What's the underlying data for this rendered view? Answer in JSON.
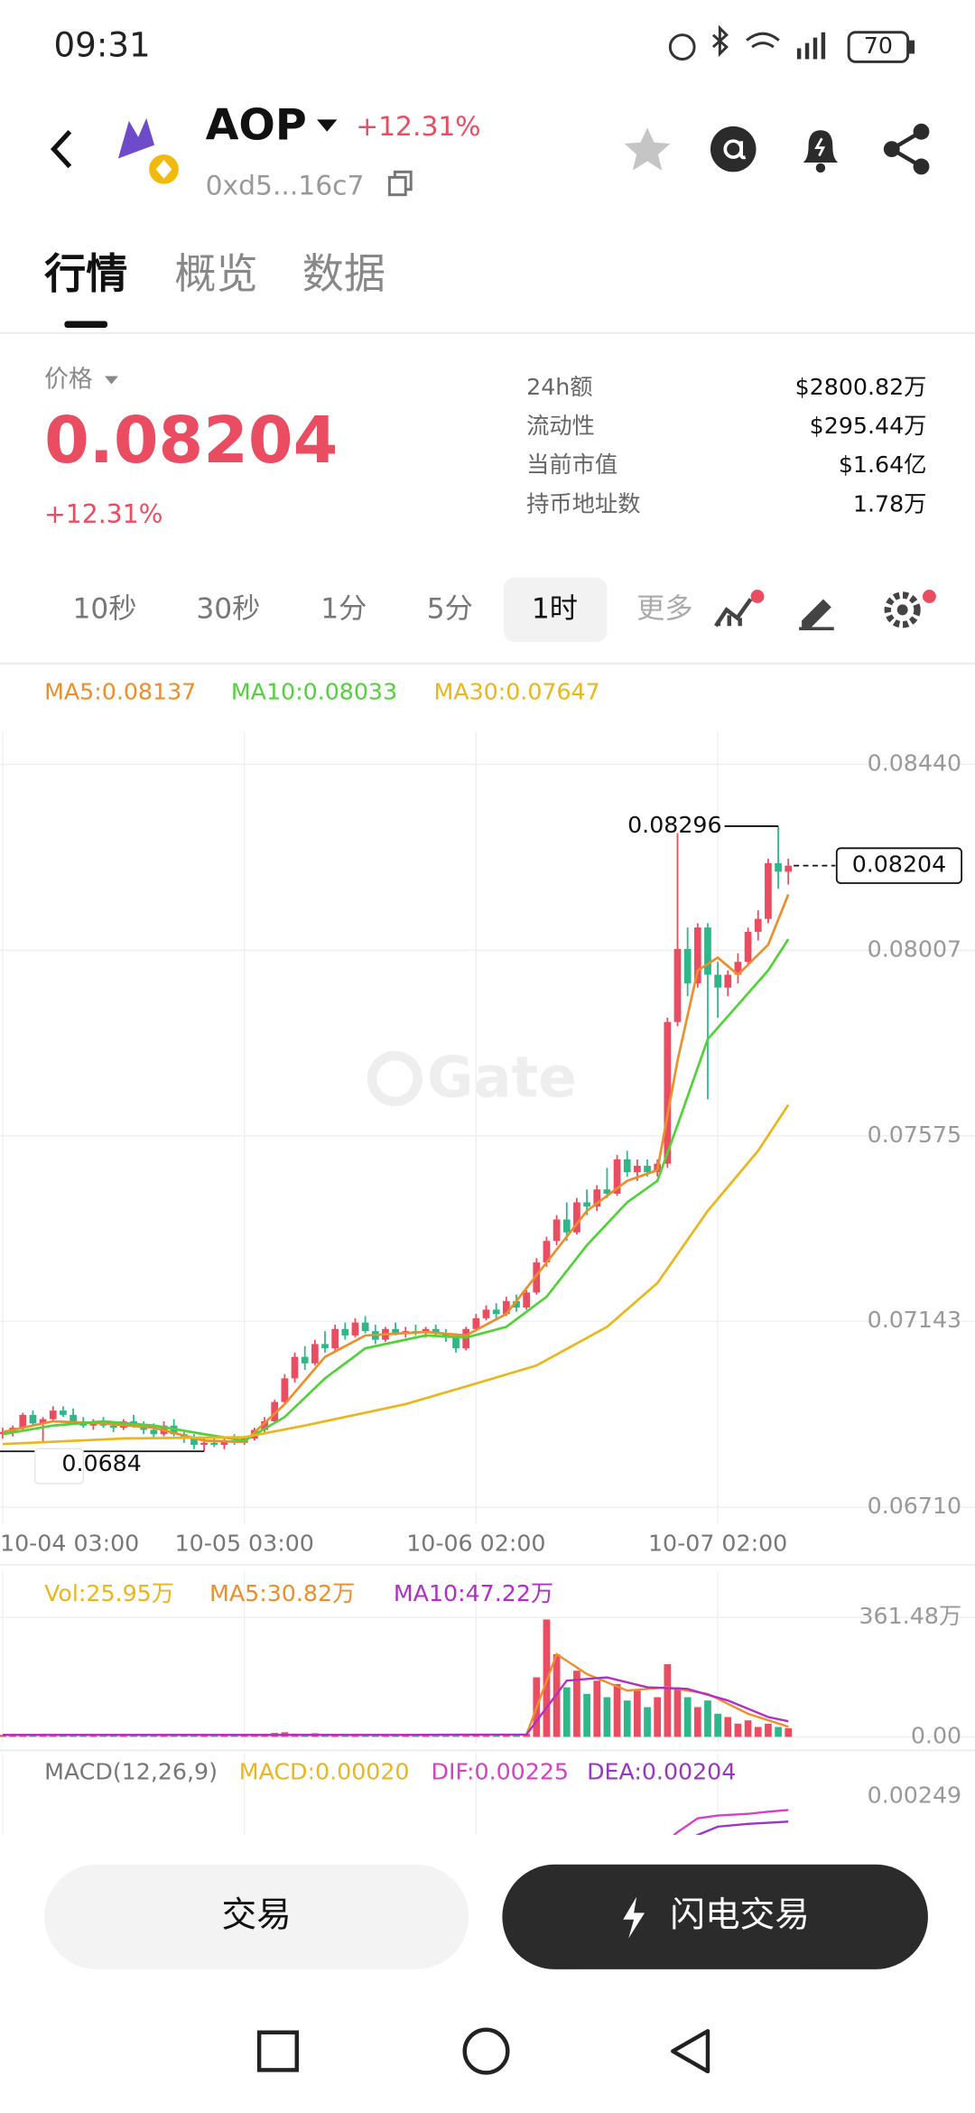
{
  "status": {
    "time": "09:31",
    "battery": "70"
  },
  "header": {
    "symbol": "AOP",
    "change": "+12.31%",
    "address": "0xd5...16c7"
  },
  "tabs": [
    "行情",
    "概览",
    "数据"
  ],
  "quote": {
    "price_label": "价格",
    "price": "0.08204",
    "change": "+12.31%"
  },
  "stats": [
    [
      "24h额",
      "$2800.82万"
    ],
    [
      "流动性",
      "$295.44万"
    ],
    [
      "当前市值",
      "$1.64亿"
    ],
    [
      "持币地址数",
      "1.78万"
    ]
  ],
  "intervals": [
    "10秒",
    "30秒",
    "1分",
    "5分",
    "1时",
    "更多"
  ],
  "chart": {
    "type": "candlestick",
    "watermark": "Gate",
    "up_color": "#ea4d62",
    "down_color": "#2eb88a",
    "ylim": [
      0.0671,
      0.0844
    ],
    "yticks": [
      {
        "value": 0.0844,
        "label": "0.08440"
      },
      0.08007,
      0.07575,
      0.07143,
      {
        "value": 0.0671,
        "label": "0.06710"
      }
    ],
    "categories": [
      "10-04 03:00",
      null,
      null,
      null,
      null,
      null,
      null,
      null,
      null,
      null,
      null,
      null,
      null,
      null,
      null,
      null,
      null,
      null,
      null,
      null,
      null,
      null,
      null,
      null,
      "10-05 03:00",
      null,
      null,
      null,
      null,
      null,
      null,
      null,
      null,
      null,
      null,
      null,
      null,
      null,
      null,
      null,
      null,
      null,
      null,
      null,
      null,
      null,
      null,
      "10-06 02:00",
      null,
      null,
      null,
      null,
      null,
      null,
      null,
      null,
      null,
      null,
      null,
      null,
      null,
      null,
      null,
      null,
      null,
      null,
      null,
      null,
      null,
      null,
      null,
      "10-07 02:00",
      null,
      null,
      null,
      null,
      null,
      null,
      null
    ],
    "candles": [
      [
        0.0688,
        0.06895,
        0.0687,
        0.06885
      ],
      [
        0.06885,
        0.069,
        0.06875,
        0.06895
      ],
      [
        0.06895,
        0.0693,
        0.0689,
        0.06925
      ],
      [
        0.06925,
        0.06935,
        0.069,
        0.06905
      ],
      [
        0.06905,
        0.0692,
        0.06862,
        0.06915
      ],
      [
        0.06915,
        0.06945,
        0.0691,
        0.06935
      ],
      [
        0.06935,
        0.06945,
        0.0692,
        0.06925
      ],
      [
        0.06925,
        0.0694,
        0.06905,
        0.0691
      ],
      [
        0.0691,
        0.0692,
        0.06895,
        0.069
      ],
      [
        0.069,
        0.06915,
        0.0689,
        0.06905
      ],
      [
        0.06905,
        0.0692,
        0.06895,
        0.069
      ],
      [
        0.069,
        0.0691,
        0.06885,
        0.06895
      ],
      [
        0.06895,
        0.06915,
        0.0689,
        0.0691
      ],
      [
        0.0691,
        0.06925,
        0.06895,
        0.069
      ],
      [
        0.069,
        0.0691,
        0.0688,
        0.0689
      ],
      [
        0.0689,
        0.06905,
        0.0687,
        0.0688
      ],
      [
        0.0688,
        0.0691,
        0.06875,
        0.069
      ],
      [
        0.069,
        0.06915,
        0.06875,
        0.0688
      ],
      [
        0.0688,
        0.0689,
        0.0686,
        0.0687
      ],
      [
        0.0687,
        0.0688,
        0.06845,
        0.06855
      ],
      [
        0.06855,
        0.0687,
        0.0684,
        0.0686
      ],
      [
        0.0686,
        0.06875,
        0.0685,
        0.06855
      ],
      [
        0.06855,
        0.0687,
        0.06845,
        0.06865
      ],
      [
        0.06865,
        0.0688,
        0.06855,
        0.0686
      ],
      [
        0.0686,
        0.06875,
        0.06855,
        0.0687
      ],
      [
        0.0687,
        0.06895,
        0.06865,
        0.0689
      ],
      [
        0.0689,
        0.0692,
        0.06885,
        0.0691
      ],
      [
        0.0691,
        0.0696,
        0.06905,
        0.06955
      ],
      [
        0.06955,
        0.0702,
        0.0695,
        0.0701
      ],
      [
        0.0701,
        0.0707,
        0.07,
        0.0706
      ],
      [
        0.0706,
        0.07085,
        0.0703,
        0.07045
      ],
      [
        0.07045,
        0.071,
        0.0704,
        0.0709
      ],
      [
        0.0709,
        0.0712,
        0.0707,
        0.0708
      ],
      [
        0.0708,
        0.07135,
        0.07075,
        0.07125
      ],
      [
        0.07125,
        0.0714,
        0.071,
        0.0711
      ],
      [
        0.0711,
        0.0715,
        0.07105,
        0.0714
      ],
      [
        0.0714,
        0.07155,
        0.07115,
        0.0712
      ],
      [
        0.0712,
        0.07135,
        0.0709,
        0.071
      ],
      [
        0.071,
        0.0713,
        0.07095,
        0.07125
      ],
      [
        0.07125,
        0.0714,
        0.0711,
        0.07115
      ],
      [
        0.07115,
        0.0713,
        0.07105,
        0.0712
      ],
      [
        0.0712,
        0.07135,
        0.0711,
        0.07115
      ],
      [
        0.07115,
        0.0713,
        0.07105,
        0.07125
      ],
      [
        0.07125,
        0.07135,
        0.0711,
        0.07115
      ],
      [
        0.07115,
        0.07125,
        0.07095,
        0.07105
      ],
      [
        0.07105,
        0.07115,
        0.0707,
        0.0708
      ],
      [
        0.0708,
        0.0713,
        0.07075,
        0.07125
      ],
      [
        0.07125,
        0.0716,
        0.0712,
        0.0715
      ],
      [
        0.0715,
        0.0718,
        0.07145,
        0.0717
      ],
      [
        0.0717,
        0.07185,
        0.0715,
        0.0716
      ],
      [
        0.0716,
        0.072,
        0.07155,
        0.0719
      ],
      [
        0.0719,
        0.07205,
        0.07165,
        0.07175
      ],
      [
        0.07175,
        0.07215,
        0.0717,
        0.0721
      ],
      [
        0.0721,
        0.0729,
        0.07205,
        0.0728
      ],
      [
        0.0728,
        0.0734,
        0.0727,
        0.0733
      ],
      [
        0.0733,
        0.0739,
        0.0732,
        0.0738
      ],
      [
        0.0738,
        0.0742,
        0.0733,
        0.0735
      ],
      [
        0.0735,
        0.0743,
        0.07345,
        0.0742
      ],
      [
        0.0742,
        0.0745,
        0.0739,
        0.0741
      ],
      [
        0.0741,
        0.0746,
        0.074,
        0.0745
      ],
      [
        0.0745,
        0.075,
        0.0743,
        0.0744
      ],
      [
        0.0744,
        0.0753,
        0.07435,
        0.0752
      ],
      [
        0.0752,
        0.0754,
        0.0748,
        0.0749
      ],
      [
        0.0749,
        0.0752,
        0.0747,
        0.07505
      ],
      [
        0.07505,
        0.0752,
        0.0748,
        0.0749
      ],
      [
        0.0749,
        0.0752,
        0.0748,
        0.0751
      ],
      [
        0.0751,
        0.0785,
        0.075,
        0.0784
      ],
      [
        0.0784,
        0.0828,
        0.0783,
        0.0801
      ],
      [
        0.0801,
        0.0806,
        0.079,
        0.0793
      ],
      [
        0.0793,
        0.0807,
        0.0792,
        0.0806
      ],
      [
        0.0806,
        0.0807,
        0.0766,
        0.0795
      ],
      [
        0.0795,
        0.0798,
        0.0785,
        0.0792
      ],
      [
        0.0792,
        0.0796,
        0.079,
        0.0795
      ],
      [
        0.0795,
        0.08,
        0.0793,
        0.0798
      ],
      [
        0.0798,
        0.0806,
        0.0797,
        0.0805
      ],
      [
        0.0805,
        0.081,
        0.0803,
        0.0808
      ],
      [
        0.0808,
        0.0822,
        0.0807,
        0.0821
      ],
      [
        0.0821,
        0.08296,
        0.0815,
        0.0819
      ],
      [
        0.0819,
        0.0822,
        0.0816,
        0.08204
      ]
    ],
    "ma": [
      {
        "label": "MA5:0.08137",
        "color": "#ec8f2b",
        "x": [
          0,
          5,
          10,
          15,
          20,
          24,
          28,
          32,
          36,
          42,
          46,
          50,
          54,
          58,
          62,
          65,
          67,
          69,
          71,
          73,
          76,
          78
        ],
        "values": [
          0.06885,
          0.0691,
          0.06905,
          0.06895,
          0.06865,
          0.06862,
          0.0695,
          0.0706,
          0.0711,
          0.07118,
          0.0711,
          0.0716,
          0.0728,
          0.074,
          0.0747,
          0.07495,
          0.0775,
          0.0796,
          0.0799,
          0.0795,
          0.0802,
          0.08137
        ]
      },
      {
        "label": "MA10:0.08033",
        "color": "#52d13b",
        "x": [
          0,
          5,
          10,
          15,
          20,
          24,
          28,
          32,
          36,
          42,
          46,
          50,
          54,
          58,
          62,
          65,
          67,
          70,
          73,
          76,
          78
        ],
        "values": [
          0.0688,
          0.069,
          0.0691,
          0.069,
          0.0688,
          0.06865,
          0.0692,
          0.0701,
          0.0708,
          0.0711,
          0.07105,
          0.0713,
          0.072,
          0.0732,
          0.0742,
          0.0747,
          0.076,
          0.078,
          0.0788,
          0.0796,
          0.08033
        ]
      },
      {
        "label": "MA30:0.07647",
        "color": "#eab61c",
        "x": [
          0,
          12,
          24,
          30,
          40,
          47,
          53,
          60,
          65,
          70,
          75,
          78
        ],
        "values": [
          0.06857,
          0.0687,
          0.06873,
          0.069,
          0.0695,
          0.06998,
          0.0704,
          0.0713,
          0.07232,
          0.074,
          0.0754,
          0.07647
        ]
      }
    ],
    "volume": {
      "legend": "Vol:25.95万",
      "ylim": [
        0,
        361.48
      ],
      "yticks": [
        {
          "value": 361.48,
          "label": "361.48万"
        },
        {
          "value": 0,
          "label": "0.00"
        }
      ],
      "values": [
        6,
        4,
        8,
        5,
        9,
        7,
        5,
        4,
        6,
        3,
        5,
        4,
        6,
        5,
        3,
        4,
        7,
        5,
        6,
        8,
        5,
        4,
        6,
        5,
        7,
        9,
        8,
        12,
        14,
        10,
        9,
        11,
        8,
        7,
        6,
        5,
        7,
        6,
        5,
        4,
        6,
        5,
        4,
        5,
        6,
        8,
        9,
        7,
        6,
        8,
        7,
        6,
        9,
        180,
        355,
        250,
        150,
        200,
        130,
        170,
        120,
        160,
        110,
        140,
        90,
        120,
        220,
        150,
        120,
        90,
        110,
        70,
        60,
        40,
        50,
        30,
        40,
        30,
        25.95
      ],
      "ma": [
        {
          "label": "MA5:30.82万",
          "color": "#ec8f2b",
          "x": [
            0,
            20,
            40,
            52,
            55,
            58,
            62,
            66,
            70,
            74,
            78
          ],
          "values": [
            6,
            6,
            6,
            7,
            250,
            190,
            140,
            150,
            130,
            70,
            30.82
          ]
        },
        {
          "label": "MA10:47.22万",
          "color": "#b02fc7",
          "x": [
            0,
            20,
            40,
            52,
            56,
            60,
            64,
            68,
            72,
            76,
            78
          ],
          "values": [
            6,
            6,
            6,
            7,
            170,
            180,
            150,
            145,
            110,
            60,
            47.22
          ]
        }
      ]
    },
    "macd": {
      "title": "MACD(12,26,9)",
      "label": "MACD:0.00020",
      "label_color": "#eab61c",
      "ylim": [
        0.0018,
        0.0026
      ],
      "yticks": [
        0.00249
      ],
      "series": [
        {
          "label": "DIF:0.00225",
          "color": "#d63fc8",
          "x": [
            66,
            67,
            69,
            71,
            74,
            76,
            78
          ],
          "values": [
            0.0017,
            0.00185,
            0.0021,
            0.00215,
            0.00218,
            0.00222,
            0.00225
          ]
        },
        {
          "label": "DEA:0.00204",
          "color": "#9b35c4",
          "x": [
            68,
            69,
            71,
            74,
            76,
            78
          ],
          "values": [
            0.0017,
            0.0018,
            0.00195,
            0.002,
            0.00202,
            0.00204
          ]
        }
      ]
    }
  },
  "actions": [
    "交易",
    "闪电交易"
  ]
}
